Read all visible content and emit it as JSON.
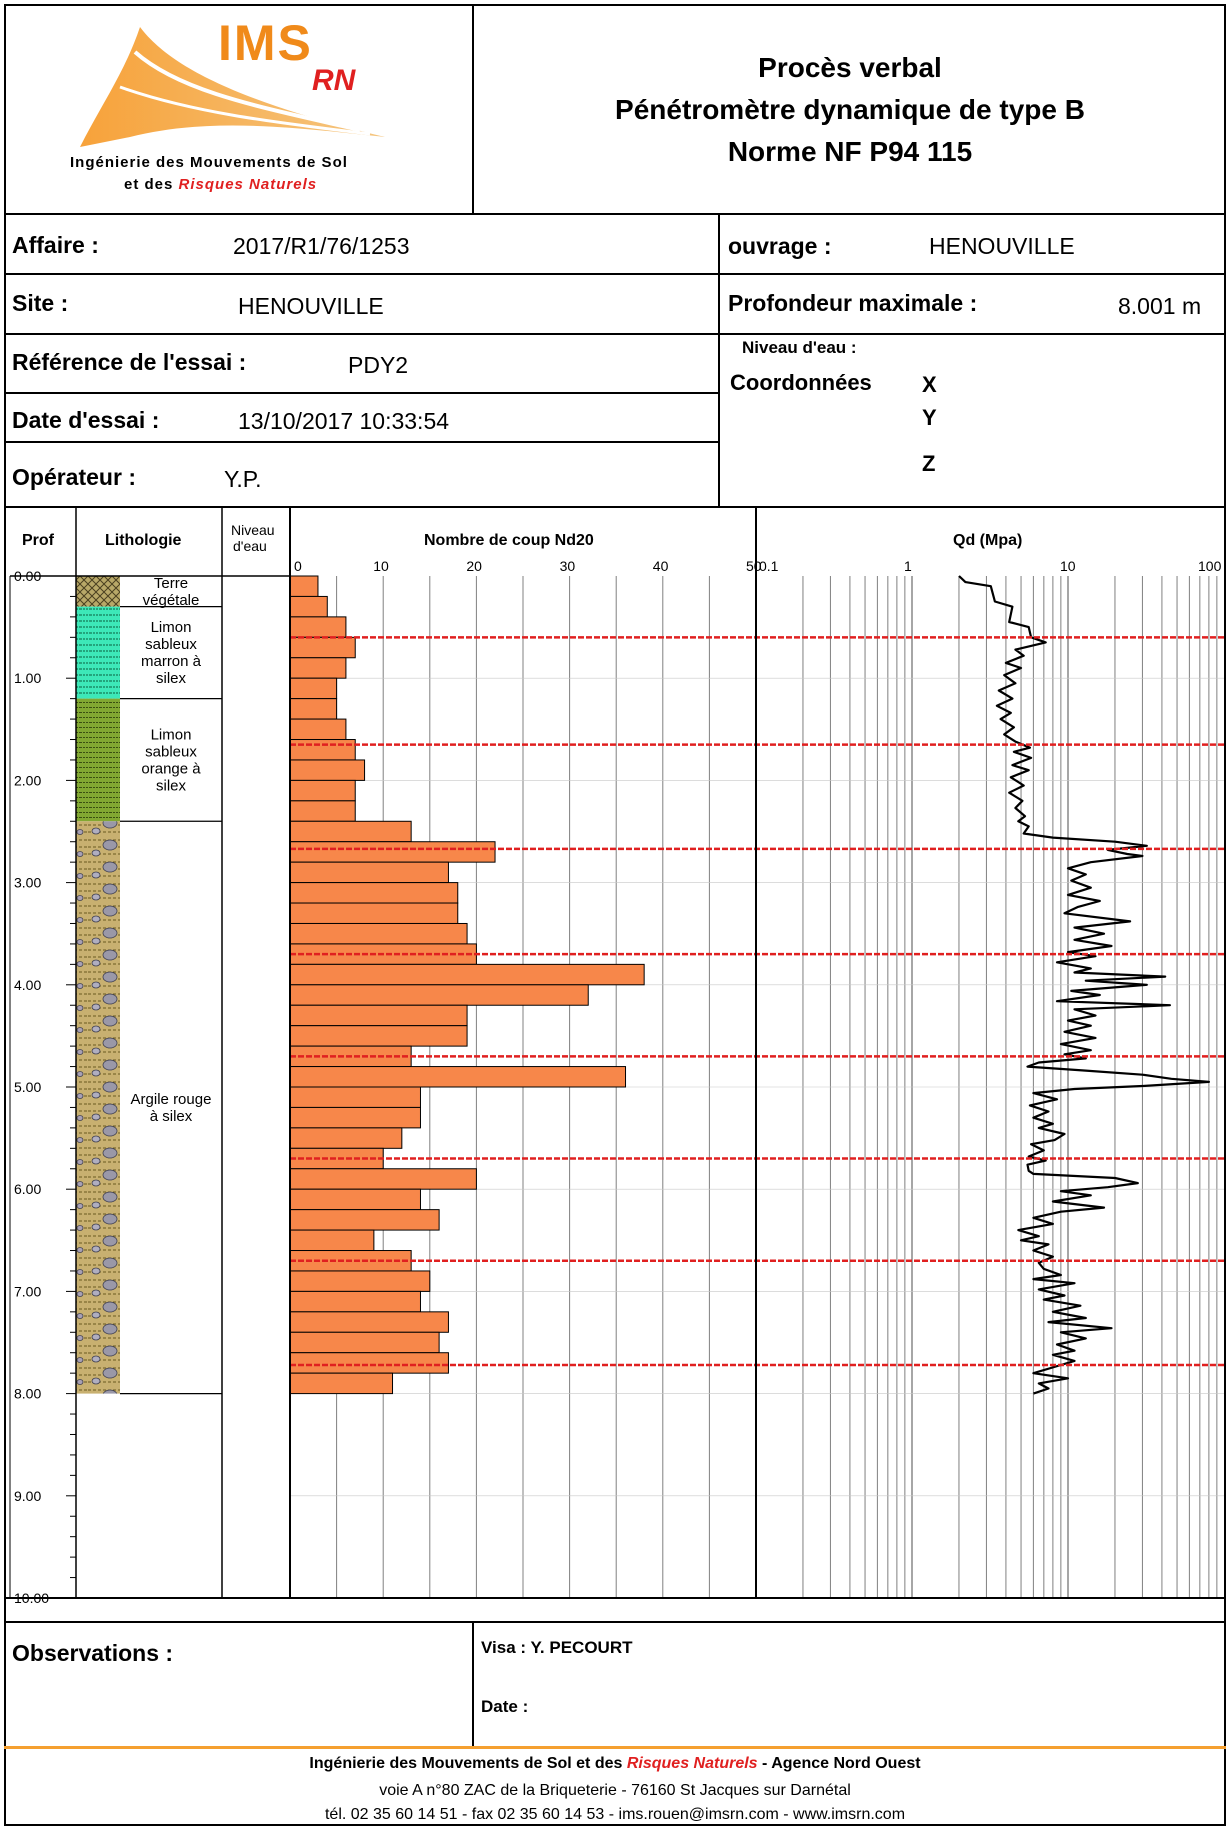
{
  "header": {
    "logo": {
      "brand": "IMS",
      "brand_sub": "RN",
      "line1": "Ingénierie des Mouvements de Sol",
      "line2_prefix": "et des",
      "line2_highlight": "Risques Naturels"
    },
    "title_line1": "Procès verbal",
    "title_line2": "Pénétromètre dynamique de type B",
    "title_line3": "Norme NF P94 115"
  },
  "info": {
    "affaire_label": "Affaire :",
    "affaire_value": "2017/R1/76/1253",
    "ouvrage_label": "ouvrage :",
    "ouvrage_value": "HENOUVILLE",
    "site_label": "Site :",
    "site_value": "HENOUVILLE",
    "prof_max_label": "Profondeur maximale :",
    "prof_max_value": "8.001 m",
    "ref_label": "Référence de l'essai :",
    "ref_value": "PDY2",
    "niveau_eau_label": "Niveau d'eau :",
    "coord_label": "Coordonnées",
    "coord_x": "X",
    "coord_y": "Y",
    "coord_z": "Z",
    "date_label": "Date d'essai :",
    "date_value": "13/10/2017 10:33:54",
    "operateur_label": "Opérateur :",
    "operateur_value": "Y.P."
  },
  "columns": {
    "prof": "Prof",
    "litho": "Lithologie",
    "niveau_line1": "Niveau",
    "niveau_line2": "d'eau"
  },
  "chart_data": [
    {
      "type": "bar",
      "title": "Nombre de coup Nd20",
      "orientation": "horizontal",
      "x_ticks": [
        "0",
        "10",
        "20",
        "30",
        "40",
        "50"
      ],
      "xlim": [
        0,
        50
      ],
      "ylim": [
        0,
        10
      ],
      "y_ticks": [
        "0.00",
        "1.00",
        "2.00",
        "3.00",
        "4.00",
        "5.00",
        "6.00",
        "7.00",
        "8.00",
        "9.00",
        "10.00"
      ],
      "depth_step": 0.2,
      "values": [
        3,
        4,
        6,
        7,
        6,
        5,
        5,
        6,
        7,
        8,
        7,
        7,
        13,
        22,
        17,
        18,
        18,
        19,
        20,
        38,
        32,
        19,
        19,
        13,
        36,
        14,
        14,
        12,
        10,
        20,
        14,
        16,
        9,
        13,
        15,
        14,
        17,
        16,
        17,
        11
      ],
      "bar_color": "#f7874a",
      "marker_depths": [
        0.6,
        1.65,
        2.67,
        3.7,
        4.7,
        5.7,
        6.7,
        7.72
      ],
      "marker_color": "#e02020"
    },
    {
      "type": "line",
      "title": "Qd (Mpa)",
      "x_scale": "log",
      "x_ticks": [
        "0.1",
        "1",
        "10",
        "100"
      ],
      "xlim": [
        0.1,
        100
      ],
      "ylim": [
        0,
        10
      ],
      "points": [
        [
          2.0,
          0.0
        ],
        [
          2.2,
          0.06
        ],
        [
          3.2,
          0.1
        ],
        [
          3.4,
          0.25
        ],
        [
          4.4,
          0.3
        ],
        [
          4.2,
          0.45
        ],
        [
          5.6,
          0.5
        ],
        [
          5.8,
          0.6
        ],
        [
          7.2,
          0.65
        ],
        [
          4.6,
          0.72
        ],
        [
          5.2,
          0.78
        ],
        [
          4.0,
          0.85
        ],
        [
          5.0,
          0.9
        ],
        [
          3.9,
          0.97
        ],
        [
          4.6,
          1.05
        ],
        [
          3.6,
          1.12
        ],
        [
          4.4,
          1.2
        ],
        [
          3.5,
          1.27
        ],
        [
          4.3,
          1.34
        ],
        [
          3.7,
          1.4
        ],
        [
          4.5,
          1.48
        ],
        [
          3.9,
          1.55
        ],
        [
          4.6,
          1.62
        ],
        [
          5.7,
          1.68
        ],
        [
          4.5,
          1.72
        ],
        [
          5.8,
          1.78
        ],
        [
          4.4,
          1.85
        ],
        [
          5.6,
          1.9
        ],
        [
          4.3,
          1.97
        ],
        [
          5.2,
          2.05
        ],
        [
          4.2,
          2.12
        ],
        [
          5.1,
          2.2
        ],
        [
          4.6,
          2.27
        ],
        [
          5.3,
          2.35
        ],
        [
          4.8,
          2.4
        ],
        [
          5.6,
          2.45
        ],
        [
          5.2,
          2.52
        ],
        [
          8.0,
          2.56
        ],
        [
          20.0,
          2.6
        ],
        [
          32.0,
          2.64
        ],
        [
          18.0,
          2.68
        ],
        [
          24.0,
          2.72
        ],
        [
          30.0,
          2.74
        ],
        [
          14.0,
          2.8
        ],
        [
          10.0,
          2.86
        ],
        [
          13.0,
          2.92
        ],
        [
          10.5,
          2.98
        ],
        [
          14.0,
          3.05
        ],
        [
          10.0,
          3.12
        ],
        [
          16.0,
          3.18
        ],
        [
          11.5,
          3.24
        ],
        [
          9.5,
          3.3
        ],
        [
          25.0,
          3.38
        ],
        [
          11.0,
          3.44
        ],
        [
          17.0,
          3.5
        ],
        [
          11.0,
          3.56
        ],
        [
          19.0,
          3.62
        ],
        [
          10.0,
          3.68
        ],
        [
          15.0,
          3.72
        ],
        [
          8.5,
          3.78
        ],
        [
          14.0,
          3.84
        ],
        [
          11.0,
          3.88
        ],
        [
          42.0,
          3.92
        ],
        [
          13.0,
          3.96
        ],
        [
          32.0,
          4.0
        ],
        [
          10.5,
          4.06
        ],
        [
          16.0,
          4.1
        ],
        [
          8.5,
          4.16
        ],
        [
          45.0,
          4.2
        ],
        [
          11.0,
          4.24
        ],
        [
          15.0,
          4.3
        ],
        [
          10.0,
          4.35
        ],
        [
          14.0,
          4.4
        ],
        [
          9.5,
          4.46
        ],
        [
          15.0,
          4.52
        ],
        [
          9.0,
          4.58
        ],
        [
          14.0,
          4.64
        ],
        [
          9.5,
          4.68
        ],
        [
          13.0,
          4.72
        ],
        [
          6.5,
          4.76
        ],
        [
          5.5,
          4.8
        ],
        [
          13.0,
          4.84
        ],
        [
          30.0,
          4.88
        ],
        [
          46.0,
          4.92
        ],
        [
          80.0,
          4.95
        ],
        [
          30.0,
          4.99
        ],
        [
          11.0,
          5.02
        ],
        [
          6.0,
          5.06
        ],
        [
          8.5,
          5.12
        ],
        [
          5.7,
          5.18
        ],
        [
          7.5,
          5.24
        ],
        [
          6.0,
          5.3
        ],
        [
          8.0,
          5.36
        ],
        [
          6.5,
          5.4
        ],
        [
          9.5,
          5.46
        ],
        [
          8.2,
          5.52
        ],
        [
          5.8,
          5.56
        ],
        [
          7.0,
          5.62
        ],
        [
          5.6,
          5.68
        ],
        [
          7.2,
          5.72
        ],
        [
          5.5,
          5.76
        ],
        [
          5.6,
          5.82
        ],
        [
          6.0,
          5.85
        ],
        [
          20.0,
          5.89
        ],
        [
          28.0,
          5.94
        ],
        [
          18.0,
          5.98
        ],
        [
          9.0,
          6.02
        ],
        [
          14.0,
          6.06
        ],
        [
          8.0,
          6.12
        ],
        [
          17.0,
          6.18
        ],
        [
          9.0,
          6.22
        ],
        [
          6.0,
          6.28
        ],
        [
          8.0,
          6.34
        ],
        [
          4.8,
          6.4
        ],
        [
          6.5,
          6.46
        ],
        [
          5.0,
          6.5
        ],
        [
          7.5,
          6.54
        ],
        [
          6.0,
          6.6
        ],
        [
          8.0,
          6.66
        ],
        [
          6.5,
          6.72
        ],
        [
          7.0,
          6.78
        ],
        [
          9.0,
          6.84
        ],
        [
          6.0,
          6.88
        ],
        [
          11.0,
          6.92
        ],
        [
          6.5,
          6.98
        ],
        [
          9.5,
          7.04
        ],
        [
          7.0,
          7.08
        ],
        [
          12.0,
          7.14
        ],
        [
          8.0,
          7.2
        ],
        [
          13.0,
          7.26
        ],
        [
          7.5,
          7.3
        ],
        [
          19.0,
          7.36
        ],
        [
          9.0,
          7.4
        ],
        [
          13.0,
          7.46
        ],
        [
          8.5,
          7.52
        ],
        [
          11.0,
          7.58
        ],
        [
          8.0,
          7.62
        ],
        [
          11.0,
          7.68
        ],
        [
          9.0,
          7.72
        ],
        [
          6.0,
          7.8
        ],
        [
          10.0,
          7.85
        ],
        [
          6.5,
          7.9
        ],
        [
          7.5,
          7.95
        ],
        [
          6.0,
          8.0
        ]
      ],
      "line_color": "#000000",
      "marker_depths": [
        0.6,
        1.65,
        2.67,
        3.7,
        4.7,
        5.7,
        6.7,
        7.72
      ],
      "marker_color": "#e02020"
    }
  ],
  "lithology": [
    {
      "label_lines": [
        "Terre",
        "végétale"
      ],
      "top": 0.0,
      "bottom": 0.3,
      "pattern": "terre",
      "color": "#8a7a3a"
    },
    {
      "label_lines": [
        "Limon",
        "sableux",
        "marron à",
        "silex"
      ],
      "top": 0.3,
      "bottom": 1.2,
      "pattern": "limon-vert",
      "color": "#40e0b0"
    },
    {
      "label_lines": [
        "Limon",
        "sableux",
        "orange à",
        "silex"
      ],
      "top": 1.2,
      "bottom": 2.4,
      "pattern": "limon-orange",
      "color": "#7fa030"
    },
    {
      "label_lines": [
        "Argile rouge",
        "à silex"
      ],
      "top": 2.4,
      "bottom": 8.0,
      "pattern": "argile",
      "color": "#b8a060"
    }
  ],
  "footer": {
    "observations_label": "Observations :",
    "visa_label": "Visa : Y. PECOURT",
    "date_label": "Date :",
    "company_prefix": "Ingénierie des Mouvements de Sol et des",
    "company_highlight": "Risques Naturels",
    "company_suffix": "- Agence Nord Ouest",
    "address": "voie A n°80 ZAC de la Briqueterie - 76160 St Jacques sur Darnétal",
    "contact": "tél. 02 35 60 14 51 - fax 02 35 60 14 53 - ims.rouen@imsrn.com - www.imsrn.com"
  }
}
